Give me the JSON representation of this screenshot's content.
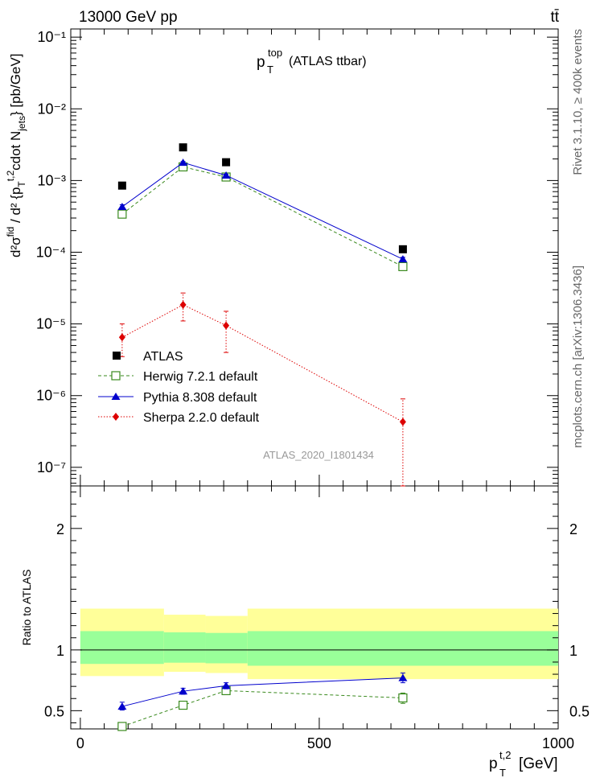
{
  "header": {
    "left": "13000 GeV pp",
    "right": "tt̄",
    "plot_title_main": "p",
    "plot_title_sup": "top",
    "plot_title_sub": "T",
    "plot_title_rest": "(ATLAS ttbar)",
    "watermark": "ATLAS_2020_I1801434",
    "side_top": "Rivet 3.1.10, ≥ 400k events",
    "side_bottom": "mcplots.cern.ch [arXiv:1306.3436]"
  },
  "chart_data": [
    {
      "type": "scatter",
      "yscale": "log",
      "ylabel": "d²σ^fid / d²{p_T^t,2 cdot N_jets} [pb/GeV]",
      "ylim": [
        5.5e-08,
        0.13
      ],
      "xlim": [
        -20,
        1000
      ],
      "ytick_labels": [
        "10⁻⁷",
        "10⁻⁶",
        "10⁻⁵",
        "10⁻⁴",
        "10⁻³",
        "10⁻²",
        "10⁻¹"
      ],
      "legend_position": "middle-left",
      "series": [
        {
          "name": "ATLAS",
          "color": "#000000",
          "marker": "filled-square",
          "x": [
            87.5,
            215,
            305,
            675
          ],
          "y": [
            0.00085,
            0.0029,
            0.0018,
            0.00011
          ]
        },
        {
          "name": "Herwig 7.2.1 default",
          "color": "#3a8a1e",
          "marker": "open-square",
          "line": "dashed",
          "x": [
            87.5,
            215,
            305,
            675
          ],
          "y": [
            0.00034,
            0.00155,
            0.00112,
            6.3e-05
          ]
        },
        {
          "name": "Pythia 8.308 default",
          "color": "#0000cc",
          "marker": "filled-triangle",
          "line": "solid",
          "x": [
            87.5,
            215,
            305,
            675
          ],
          "y": [
            0.00043,
            0.00178,
            0.00118,
            8e-05
          ],
          "yerr_low": [
            0.0004,
            0.00172,
            0.00113,
            7.5e-05
          ],
          "yerr_high": [
            0.00046,
            0.00184,
            0.00123,
            8.5e-05
          ]
        },
        {
          "name": "Sherpa 2.2.0 default",
          "color": "#dd0000",
          "marker": "filled-diamond",
          "line": "dotted",
          "x": [
            87.5,
            215,
            305,
            675
          ],
          "y": [
            6.5e-06,
            1.85e-05,
            9.5e-06,
            4.3e-07
          ],
          "yerr_low": [
            3.5e-06,
            1.1e-05,
            4e-06,
            5e-08
          ],
          "yerr_high": [
            1e-05,
            2.7e-05,
            1.5e-05,
            9e-07
          ]
        }
      ]
    },
    {
      "type": "scatter",
      "ylabel": "Ratio to ATLAS",
      "xlabel": "p_T^t,2 [GeV]",
      "ylim": [
        0.35,
        2.35
      ],
      "xlim": [
        -20,
        1000
      ],
      "xticks": [
        0,
        500,
        1000
      ],
      "yticks": [
        0.5,
        1,
        2
      ],
      "bands": {
        "bins": [
          [
            0,
            175
          ],
          [
            175,
            262
          ],
          [
            262,
            350
          ],
          [
            350,
            1000
          ]
        ],
        "stat": [
          [
            0.885,
            1.155
          ],
          [
            0.895,
            1.145
          ],
          [
            0.89,
            1.14
          ],
          [
            0.87,
            1.155
          ]
        ],
        "total": [
          [
            0.785,
            1.34
          ],
          [
            0.82,
            1.29
          ],
          [
            0.81,
            1.28
          ],
          [
            0.76,
            1.34
          ]
        ],
        "stat_color": "#99ff99",
        "total_color": "#ffff99"
      },
      "series": [
        {
          "name": "Herwig 7.2.1 default",
          "color": "#3a8a1e",
          "marker": "open-square",
          "line": "dashed",
          "x": [
            87.5,
            215,
            305,
            675
          ],
          "y": [
            0.37,
            0.545,
            0.665,
            0.605
          ],
          "yerr_low": [
            0.355,
            0.535,
            0.65,
            0.56
          ],
          "yerr_high": [
            0.385,
            0.555,
            0.68,
            0.645
          ]
        },
        {
          "name": "Pythia 8.308 default",
          "color": "#0000cc",
          "marker": "filled-triangle",
          "line": "solid",
          "x": [
            87.5,
            215,
            305,
            675
          ],
          "y": [
            0.535,
            0.66,
            0.705,
            0.77
          ],
          "yerr_low": [
            0.505,
            0.635,
            0.68,
            0.73
          ],
          "yerr_high": [
            0.57,
            0.685,
            0.73,
            0.81
          ]
        }
      ]
    }
  ]
}
